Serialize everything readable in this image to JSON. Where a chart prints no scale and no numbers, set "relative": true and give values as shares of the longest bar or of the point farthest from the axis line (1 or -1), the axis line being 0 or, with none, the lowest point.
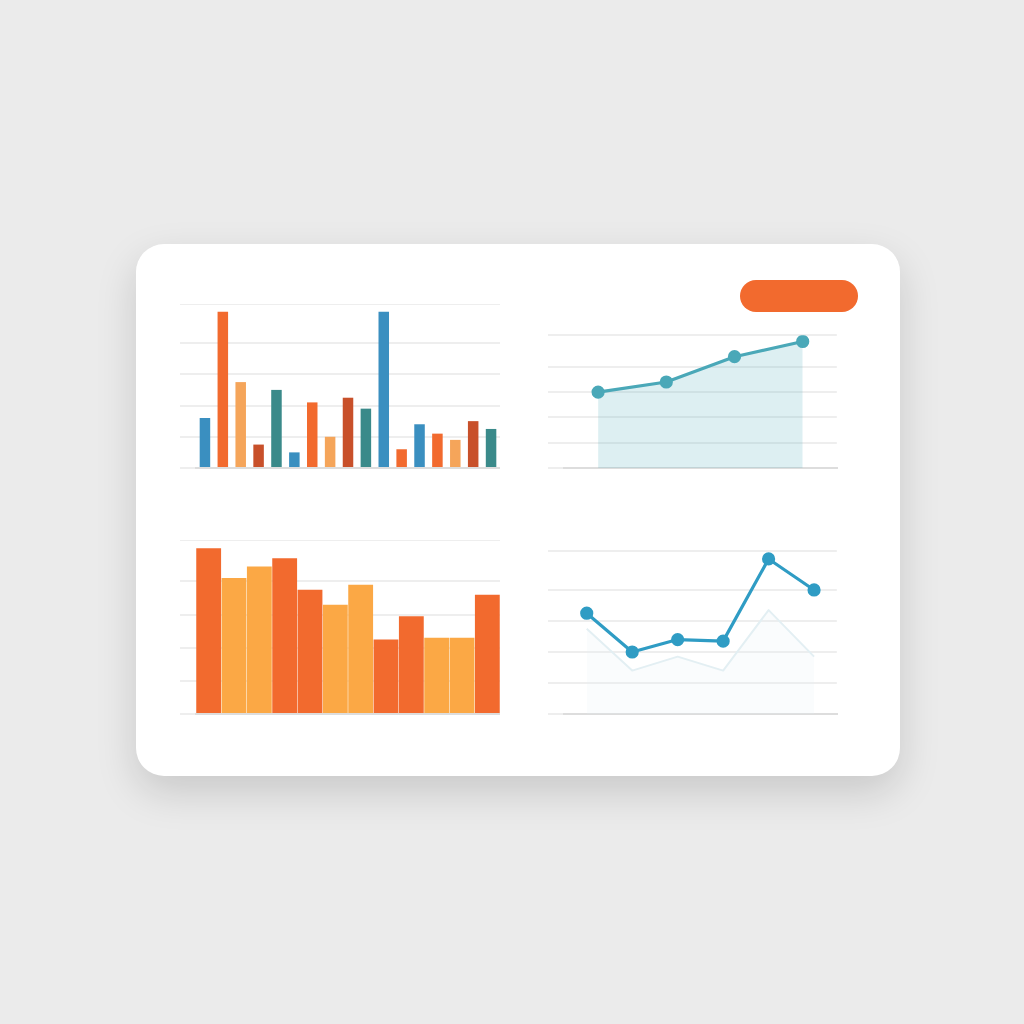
{
  "chart_data": [
    {
      "type": "bar",
      "relative": true,
      "categories": [
        null,
        null,
        null,
        null,
        null,
        null,
        null,
        null,
        null,
        null,
        null,
        null,
        null,
        null,
        null,
        null,
        null
      ],
      "grid": "y",
      "legend": false,
      "values": [
        0.32,
        1.0,
        0.55,
        0.15,
        0.5,
        0.1,
        0.42,
        0.2,
        0.45,
        0.38,
        1.0,
        0.12,
        0.28,
        0.22,
        0.18,
        0.3,
        0.25
      ],
      "colors": [
        "#3a8fc0",
        "#f26a2e",
        "#f5a55a",
        "#c8502a",
        "#3a8a8a",
        "#3a8fc0",
        "#f26a2e",
        "#f5a55a",
        "#c8502a",
        "#3a8a8a",
        "#3a8fc0",
        "#f26a2e",
        "#3a8fc0",
        "#f26a2e",
        "#f5a55a",
        "#c8502a",
        "#3a8a8a"
      ]
    },
    {
      "type": "area",
      "relative": true,
      "categories": [
        null,
        null,
        null,
        null
      ],
      "grid": "y",
      "legend": false,
      "marker": "circle",
      "series": [
        {
          "color": "#4aa8b8",
          "values": [
            0.6,
            0.68,
            0.88,
            1.0
          ]
        }
      ]
    },
    {
      "type": "bar",
      "relative": true,
      "categories": [
        null,
        null,
        null,
        null,
        null,
        null,
        null,
        null,
        null,
        null,
        null,
        null
      ],
      "grid": "y",
      "legend": false,
      "values": [
        1.0,
        0.82,
        0.89,
        0.94,
        0.75,
        0.66,
        0.78,
        0.45,
        0.59,
        0.46,
        0.46,
        0.72
      ],
      "colors": [
        "#f26a2e",
        "#fba845",
        "#fba845",
        "#f26a2e",
        "#f26a2e",
        "#fba845",
        "#fba845",
        "#f26a2e",
        "#f26a2e",
        "#fba845",
        "#fba845",
        "#f26a2e"
      ]
    },
    {
      "type": "line",
      "relative": true,
      "categories": [
        null,
        null,
        null,
        null,
        null,
        null
      ],
      "grid": "y",
      "legend": false,
      "marker": "circle",
      "series": [
        {
          "color": "#2f9cc4",
          "values": [
            0.65,
            0.4,
            0.48,
            0.47,
            1.0,
            0.8
          ]
        },
        {
          "type": "area",
          "marker": "none",
          "color": "#e3eff3",
          "values": [
            0.55,
            0.28,
            0.37,
            0.28,
            0.67,
            0.37
          ]
        }
      ]
    }
  ]
}
